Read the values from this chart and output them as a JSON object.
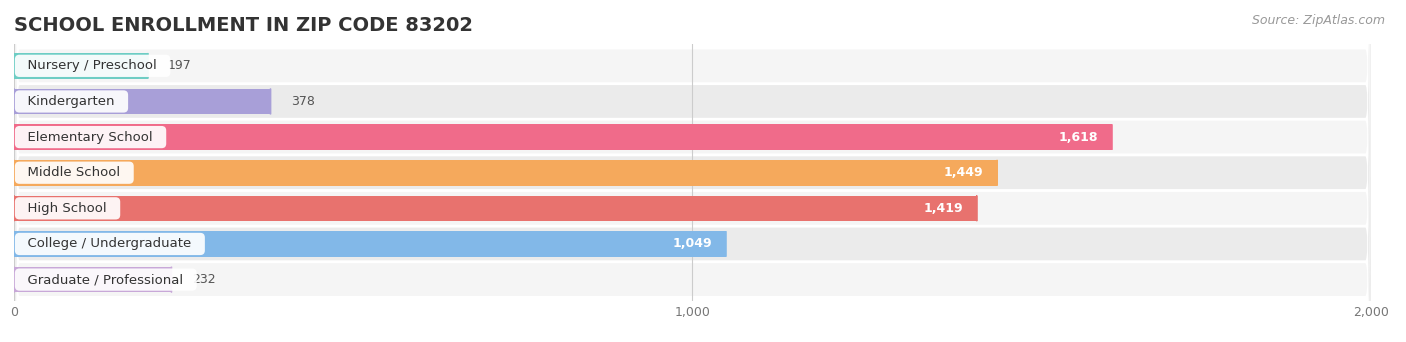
{
  "title": "SCHOOL ENROLLMENT IN ZIP CODE 83202",
  "source": "Source: ZipAtlas.com",
  "categories": [
    "Nursery / Preschool",
    "Kindergarten",
    "Elementary School",
    "Middle School",
    "High School",
    "College / Undergraduate",
    "Graduate / Professional"
  ],
  "values": [
    197,
    378,
    1618,
    1449,
    1419,
    1049,
    232
  ],
  "bar_colors": [
    "#6dcdc4",
    "#a89fd8",
    "#f06b8a",
    "#f5a95c",
    "#e8726e",
    "#82b8e8",
    "#c8a8d8"
  ],
  "xlim": [
    0,
    2000
  ],
  "xticks": [
    0,
    1000,
    2000
  ],
  "title_fontsize": 14,
  "label_fontsize": 9.5,
  "value_fontsize": 9,
  "source_fontsize": 9,
  "bg_color": "#ffffff",
  "row_even_color": "#f5f5f5",
  "row_odd_color": "#ebebeb"
}
